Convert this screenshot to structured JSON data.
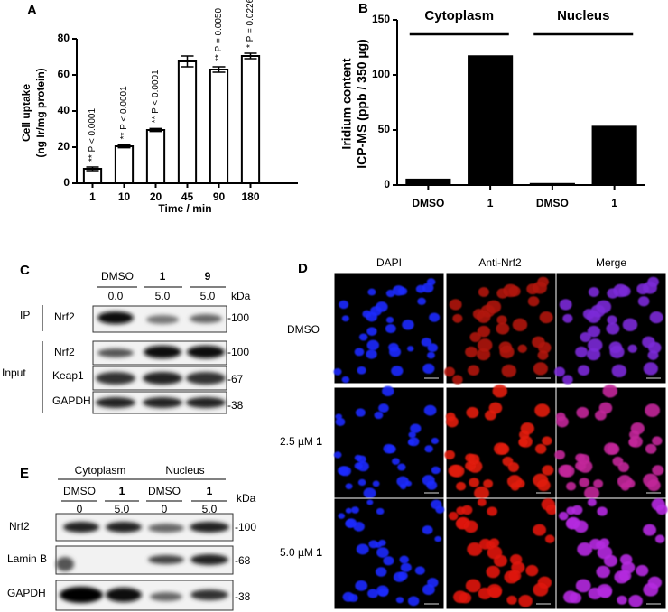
{
  "chart_data": [
    {
      "type": "bar",
      "panel": "A",
      "y_label": [
        "Cell uptake",
        "(ng Ir/mg protein)"
      ],
      "x_label": "Time / min",
      "categories": [
        "1",
        "10",
        "20",
        "45",
        "90",
        "180"
      ],
      "values": [
        8,
        20.5,
        29.5,
        67.5,
        63,
        70.5
      ],
      "errors": [
        1,
        0.8,
        0.8,
        3,
        1.5,
        1.5
      ],
      "annotations": [
        "** P < 0.0001",
        "** P < 0.0001",
        "** P < 0.0001",
        null,
        "** P = 0.0050",
        "* P = 0.0226"
      ],
      "color": "#ffffff",
      "ylim": [
        0,
        80
      ],
      "yticks": [
        0,
        20,
        40,
        60,
        80
      ]
    },
    {
      "type": "bar",
      "panel": "B",
      "y_label": [
        "Iridium content",
        "ICP-MS (ppb / 350 µg)"
      ],
      "groups": [
        "Cytoplasm",
        "Nucleus"
      ],
      "categories": [
        "DMSO",
        "1",
        "DMSO",
        "1"
      ],
      "values": [
        5,
        117,
        1,
        53
      ],
      "color": "#000000",
      "ylim": [
        0,
        150
      ],
      "yticks": [
        0,
        50,
        100,
        150
      ]
    }
  ],
  "panel_c": {
    "letter": "C",
    "lanes": [
      "DMSO",
      "1",
      "9"
    ],
    "doses": [
      "0.0",
      "5.0",
      "5.0"
    ],
    "unit": "kDa",
    "ip": "IP",
    "input": "Input",
    "rows": [
      {
        "label": "Nrf2",
        "kda": "-100"
      },
      {
        "label": "Nrf2",
        "kda": "-100"
      },
      {
        "label": "Keap1",
        "kda": "-67"
      },
      {
        "label": "GAPDH",
        "kda": "-38"
      }
    ]
  },
  "panel_d": {
    "letter": "D",
    "columns": [
      "DAPI",
      "Anti-Nrf2",
      "Merge"
    ],
    "rows": [
      {
        "label": "DMSO"
      },
      {
        "label": "2.5 µM ",
        "compound": "1"
      },
      {
        "label": "5.0 µM ",
        "compound": "1"
      }
    ]
  },
  "panel_e": {
    "letter": "E",
    "groups": [
      "Cytoplasm",
      "Nucleus"
    ],
    "lanes": [
      "DMSO",
      "1",
      "DMSO",
      "1"
    ],
    "doses": [
      "0",
      "5.0",
      "0",
      "5.0"
    ],
    "unit": "kDa",
    "rows": [
      {
        "label": "Nrf2",
        "kda": "-100"
      },
      {
        "label": "Lamin B",
        "kda": "-68"
      },
      {
        "label": "GAPDH",
        "kda": "-38"
      }
    ]
  }
}
